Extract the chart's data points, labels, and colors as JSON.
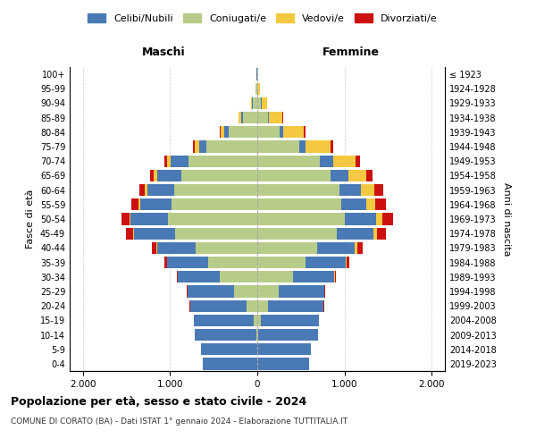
{
  "age_groups": [
    "100+",
    "95-99",
    "90-94",
    "85-89",
    "80-84",
    "75-79",
    "70-74",
    "65-69",
    "60-64",
    "55-59",
    "50-54",
    "45-49",
    "40-44",
    "35-39",
    "30-34",
    "25-29",
    "20-24",
    "15-19",
    "10-14",
    "5-9",
    "0-4"
  ],
  "birth_years": [
    "≤ 1923",
    "1924-1928",
    "1929-1933",
    "1934-1938",
    "1939-1943",
    "1944-1948",
    "1949-1953",
    "1954-1958",
    "1959-1963",
    "1964-1968",
    "1969-1973",
    "1974-1978",
    "1979-1983",
    "1984-1988",
    "1989-1993",
    "1994-1998",
    "1999-2003",
    "2004-2008",
    "2009-2013",
    "2014-2018",
    "2019-2023"
  ],
  "male_coniugati": [
    5,
    18,
    55,
    160,
    330,
    580,
    790,
    870,
    950,
    980,
    1020,
    940,
    710,
    560,
    430,
    270,
    120,
    40,
    10,
    3,
    2
  ],
  "male_celibi": [
    2,
    4,
    10,
    20,
    45,
    90,
    200,
    280,
    310,
    360,
    430,
    470,
    440,
    470,
    480,
    530,
    650,
    690,
    710,
    640,
    620
  ],
  "male_vedovi": [
    1,
    3,
    10,
    30,
    40,
    50,
    45,
    35,
    25,
    18,
    14,
    10,
    6,
    4,
    2,
    1,
    1,
    0,
    0,
    0,
    0
  ],
  "male_divorziati": [
    0,
    0,
    1,
    4,
    10,
    18,
    30,
    45,
    65,
    85,
    95,
    80,
    50,
    28,
    12,
    5,
    2,
    0,
    0,
    0,
    0
  ],
  "female_coniugati": [
    2,
    10,
    40,
    120,
    260,
    480,
    720,
    840,
    940,
    960,
    1000,
    910,
    690,
    550,
    410,
    250,
    120,
    45,
    12,
    3,
    1
  ],
  "female_celibi": [
    2,
    4,
    8,
    15,
    35,
    70,
    150,
    200,
    250,
    290,
    360,
    420,
    430,
    460,
    470,
    520,
    640,
    665,
    685,
    610,
    590
  ],
  "female_vedovi": [
    3,
    20,
    65,
    150,
    240,
    290,
    260,
    210,
    155,
    105,
    70,
    40,
    22,
    12,
    6,
    2,
    1,
    0,
    0,
    0,
    0
  ],
  "female_divorziati": [
    0,
    1,
    4,
    10,
    18,
    28,
    45,
    70,
    95,
    115,
    125,
    105,
    65,
    32,
    13,
    5,
    2,
    0,
    0,
    0,
    0
  ],
  "color_celibi": "#4a7ab5",
  "color_coniugati": "#b8cc8a",
  "color_vedovi": "#f5c842",
  "color_divorziati": "#cc1111",
  "title": "Popolazione per età, sesso e stato civile - 2024",
  "subtitle": "COMUNE DI CORATO (BA) - Dati ISTAT 1° gennaio 2024 - Elaborazione TUTTITALIA.IT",
  "xlabel_left": "Maschi",
  "xlabel_right": "Femmine",
  "ylabel_left": "Fasce di età",
  "ylabel_right": "Anni di nascita",
  "xlim": 2150
}
